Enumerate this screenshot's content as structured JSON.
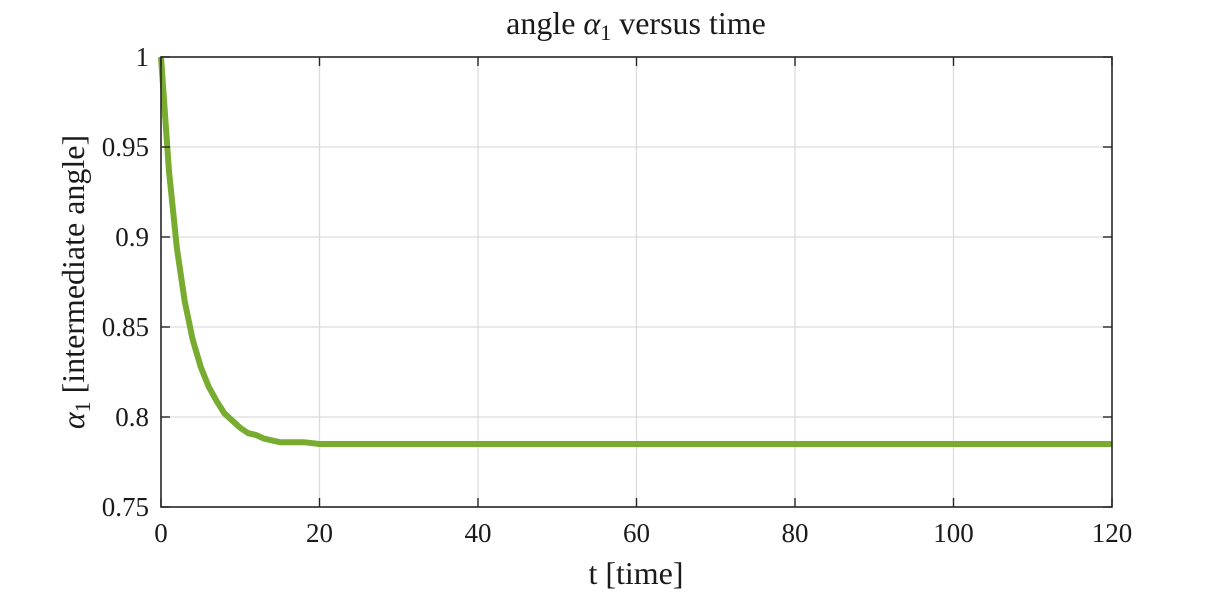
{
  "chart_data": {
    "type": "line",
    "title": {
      "prefix": "angle ",
      "symbol": "α",
      "subscript": "1",
      "suffix": " versus time"
    },
    "xlabel": "t [time]",
    "ylabel": {
      "symbol": "α",
      "subscript": "1",
      "suffix": " [intermediate angle]"
    },
    "xlim": [
      0,
      120
    ],
    "ylim": [
      0.75,
      1
    ],
    "xticks": [
      0,
      20,
      40,
      60,
      80,
      100,
      120
    ],
    "yticks": [
      0.75,
      0.8,
      0.85,
      0.9,
      0.95,
      1
    ],
    "xtick_labels": [
      "0",
      "20",
      "40",
      "60",
      "80",
      "100",
      "120"
    ],
    "ytick_labels": [
      "0.75",
      "0.8",
      "0.85",
      "0.9",
      "0.95",
      "1"
    ],
    "grid": true,
    "series": [
      {
        "color": "#77ac30",
        "x": [
          0,
          1,
          2,
          3,
          4,
          5,
          6,
          7,
          8,
          9,
          10,
          11,
          12,
          13,
          14,
          15,
          16,
          18,
          20,
          25,
          30,
          40,
          50,
          60,
          70,
          80,
          90,
          100,
          110,
          120
        ],
        "y": [
          1.0,
          0.937,
          0.894,
          0.864,
          0.843,
          0.828,
          0.817,
          0.809,
          0.802,
          0.798,
          0.794,
          0.791,
          0.79,
          0.788,
          0.787,
          0.786,
          0.786,
          0.786,
          0.785,
          0.785,
          0.785,
          0.785,
          0.785,
          0.785,
          0.785,
          0.785,
          0.785,
          0.785,
          0.785,
          0.785
        ]
      }
    ]
  }
}
